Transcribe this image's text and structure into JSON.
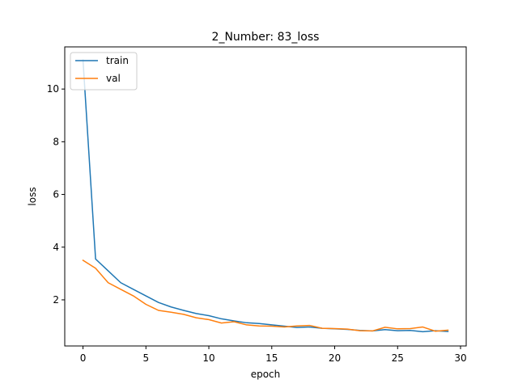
{
  "chart_data": {
    "type": "line",
    "title": "2_Number: 83_loss",
    "xlabel": "epoch",
    "ylabel": "loss",
    "xlim": [
      -1.45,
      30.45
    ],
    "ylim": [
      0.25,
      11.6
    ],
    "xticks": [
      0,
      5,
      10,
      15,
      20,
      25,
      30
    ],
    "yticks": [
      2,
      4,
      6,
      8,
      10
    ],
    "grid": false,
    "legend": {
      "position": "top-left"
    },
    "x": [
      0,
      1,
      2,
      3,
      4,
      5,
      6,
      7,
      8,
      9,
      10,
      11,
      12,
      13,
      14,
      15,
      16,
      17,
      18,
      19,
      20,
      21,
      22,
      23,
      24,
      25,
      26,
      27,
      28,
      29
    ],
    "series": [
      {
        "name": "train",
        "color": "#1f77b4",
        "values": [
          11.1,
          3.55,
          3.1,
          2.65,
          2.4,
          2.15,
          1.9,
          1.73,
          1.6,
          1.48,
          1.4,
          1.28,
          1.2,
          1.13,
          1.1,
          1.05,
          1.0,
          0.95,
          0.97,
          0.92,
          0.9,
          0.88,
          0.84,
          0.82,
          0.87,
          0.83,
          0.84,
          0.79,
          0.83,
          0.8
        ]
      },
      {
        "name": "val",
        "color": "#ff7f0e",
        "values": [
          3.5,
          3.2,
          2.65,
          2.4,
          2.15,
          1.83,
          1.6,
          1.53,
          1.45,
          1.32,
          1.25,
          1.12,
          1.17,
          1.05,
          1.01,
          1.0,
          0.97,
          1.01,
          1.03,
          0.92,
          0.91,
          0.89,
          0.83,
          0.82,
          0.96,
          0.9,
          0.91,
          0.97,
          0.81,
          0.85
        ]
      }
    ]
  }
}
